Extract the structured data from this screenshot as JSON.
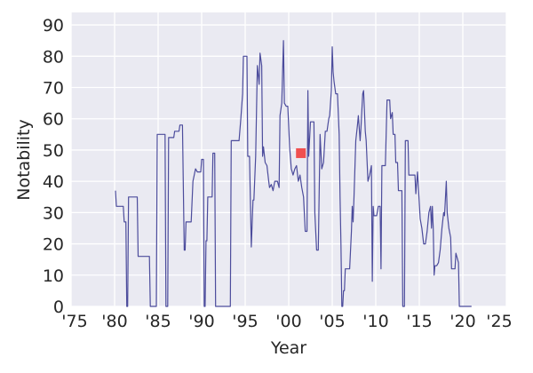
{
  "chart_data": {
    "type": "line",
    "xlabel": "Year",
    "ylabel": "Notability",
    "xlim": [
      1975,
      2025
    ],
    "ylim": [
      0,
      94
    ],
    "grid": true,
    "background": "#eaeaf2",
    "line_color": "#4c4c9c",
    "marker_color": "#f05050",
    "x_ticks": [
      {
        "value": 1975,
        "label": "'75"
      },
      {
        "value": 1980,
        "label": "'80"
      },
      {
        "value": 1985,
        "label": "'85"
      },
      {
        "value": 1990,
        "label": "'90"
      },
      {
        "value": 1995,
        "label": "'95"
      },
      {
        "value": 2000,
        "label": "'00"
      },
      {
        "value": 2005,
        "label": "'05"
      },
      {
        "value": 2010,
        "label": "'10"
      },
      {
        "value": 2015,
        "label": "'15"
      },
      {
        "value": 2020,
        "label": "'20"
      },
      {
        "value": 2025,
        "label": "'25"
      }
    ],
    "y_ticks": [
      {
        "value": 0,
        "label": "0"
      },
      {
        "value": 10,
        "label": "10"
      },
      {
        "value": 20,
        "label": "20"
      },
      {
        "value": 30,
        "label": "30"
      },
      {
        "value": 40,
        "label": "40"
      },
      {
        "value": 50,
        "label": "50"
      },
      {
        "value": 60,
        "label": "60"
      },
      {
        "value": 70,
        "label": "70"
      },
      {
        "value": 80,
        "label": "80"
      },
      {
        "value": 90,
        "label": "90"
      }
    ],
    "marker": {
      "x": 2001.4,
      "y": 49
    },
    "series": [
      {
        "points": [
          [
            1980.1,
            37
          ],
          [
            1980.2,
            32
          ],
          [
            1981.0,
            32
          ],
          [
            1981.1,
            27
          ],
          [
            1981.3,
            27
          ],
          [
            1981.4,
            0
          ],
          [
            1981.5,
            0
          ],
          [
            1981.6,
            35
          ],
          [
            1982.6,
            35
          ],
          [
            1982.7,
            16
          ],
          [
            1984.0,
            16
          ],
          [
            1984.1,
            0
          ],
          [
            1984.8,
            0
          ],
          [
            1984.9,
            55
          ],
          [
            1985.8,
            55
          ],
          [
            1985.9,
            0
          ],
          [
            1986.1,
            0
          ],
          [
            1986.2,
            54
          ],
          [
            1986.8,
            54
          ],
          [
            1986.9,
            56
          ],
          [
            1987.4,
            56
          ],
          [
            1987.5,
            58
          ],
          [
            1987.8,
            58
          ],
          [
            1988.0,
            18
          ],
          [
            1988.1,
            18
          ],
          [
            1988.2,
            27
          ],
          [
            1988.8,
            27
          ],
          [
            1989.0,
            40
          ],
          [
            1989.3,
            44
          ],
          [
            1989.5,
            43
          ],
          [
            1989.9,
            43
          ],
          [
            1990.0,
            47
          ],
          [
            1990.2,
            47
          ],
          [
            1990.3,
            0
          ],
          [
            1990.4,
            0
          ],
          [
            1990.5,
            21
          ],
          [
            1990.6,
            21
          ],
          [
            1990.7,
            35
          ],
          [
            1991.2,
            35
          ],
          [
            1991.3,
            49
          ],
          [
            1991.5,
            49
          ],
          [
            1991.6,
            0
          ],
          [
            1993.3,
            0
          ],
          [
            1993.4,
            53
          ],
          [
            1994.3,
            53
          ],
          [
            1994.5,
            60
          ],
          [
            1994.7,
            68
          ],
          [
            1994.8,
            80
          ],
          [
            1995.2,
            80
          ],
          [
            1995.3,
            48
          ],
          [
            1995.5,
            48
          ],
          [
            1995.7,
            19
          ],
          [
            1995.9,
            34
          ],
          [
            1996.0,
            34
          ],
          [
            1996.2,
            48
          ],
          [
            1996.4,
            77
          ],
          [
            1996.6,
            71
          ],
          [
            1996.7,
            81
          ],
          [
            1996.9,
            77
          ],
          [
            1997.0,
            48
          ],
          [
            1997.1,
            51
          ],
          [
            1997.3,
            46
          ],
          [
            1997.5,
            45
          ],
          [
            1997.7,
            40
          ],
          [
            1997.8,
            38
          ],
          [
            1998.0,
            39
          ],
          [
            1998.2,
            37
          ],
          [
            1998.4,
            40
          ],
          [
            1998.7,
            40
          ],
          [
            1998.9,
            38
          ],
          [
            1999.0,
            61
          ],
          [
            1999.2,
            65
          ],
          [
            1999.4,
            85
          ],
          [
            1999.5,
            65
          ],
          [
            1999.7,
            64
          ],
          [
            1999.9,
            64
          ],
          [
            2000.1,
            51
          ],
          [
            2000.3,
            44
          ],
          [
            2000.5,
            42
          ],
          [
            2000.7,
            44
          ],
          [
            2000.9,
            45
          ],
          [
            2001.1,
            40
          ],
          [
            2001.3,
            42
          ],
          [
            2001.5,
            38
          ],
          [
            2001.7,
            35
          ],
          [
            2001.9,
            24
          ],
          [
            2002.1,
            24
          ],
          [
            2002.2,
            69
          ],
          [
            2002.3,
            48
          ],
          [
            2002.5,
            59
          ],
          [
            2002.9,
            59
          ],
          [
            2003.0,
            30
          ],
          [
            2003.2,
            18
          ],
          [
            2003.4,
            18
          ],
          [
            2003.6,
            55
          ],
          [
            2003.8,
            44
          ],
          [
            2004.0,
            46
          ],
          [
            2004.2,
            56
          ],
          [
            2004.4,
            56
          ],
          [
            2004.6,
            60
          ],
          [
            2004.7,
            61
          ],
          [
            2004.9,
            69
          ],
          [
            2005.0,
            83
          ],
          [
            2005.1,
            75
          ],
          [
            2005.2,
            72
          ],
          [
            2005.4,
            68
          ],
          [
            2005.6,
            68
          ],
          [
            2005.8,
            55
          ],
          [
            2005.9,
            35
          ],
          [
            2006.0,
            20
          ],
          [
            2006.1,
            0
          ],
          [
            2006.2,
            0
          ],
          [
            2006.3,
            5
          ],
          [
            2006.4,
            5
          ],
          [
            2006.5,
            12
          ],
          [
            2007.0,
            12
          ],
          [
            2007.2,
            24
          ],
          [
            2007.3,
            32
          ],
          [
            2007.4,
            27
          ],
          [
            2007.5,
            35
          ],
          [
            2007.7,
            53
          ],
          [
            2007.9,
            58
          ],
          [
            2008.0,
            61
          ],
          [
            2008.2,
            53
          ],
          [
            2008.3,
            57
          ],
          [
            2008.5,
            68
          ],
          [
            2008.6,
            69
          ],
          [
            2008.8,
            56
          ],
          [
            2008.9,
            53
          ],
          [
            2009.1,
            40
          ],
          [
            2009.3,
            42
          ],
          [
            2009.5,
            45
          ],
          [
            2009.6,
            8
          ],
          [
            2009.7,
            32
          ],
          [
            2009.8,
            29
          ],
          [
            2010.1,
            29
          ],
          [
            2010.3,
            32
          ],
          [
            2010.5,
            32
          ],
          [
            2010.6,
            12
          ],
          [
            2010.7,
            45
          ],
          [
            2011.1,
            45
          ],
          [
            2011.3,
            66
          ],
          [
            2011.6,
            66
          ],
          [
            2011.7,
            60
          ],
          [
            2011.9,
            62
          ],
          [
            2012.0,
            55
          ],
          [
            2012.2,
            55
          ],
          [
            2012.3,
            46
          ],
          [
            2012.5,
            46
          ],
          [
            2012.6,
            37
          ],
          [
            2013.0,
            37
          ],
          [
            2013.1,
            0
          ],
          [
            2013.3,
            0
          ],
          [
            2013.4,
            53
          ],
          [
            2013.7,
            53
          ],
          [
            2013.8,
            42
          ],
          [
            2014.5,
            42
          ],
          [
            2014.6,
            36
          ],
          [
            2014.8,
            43
          ],
          [
            2015.0,
            33
          ],
          [
            2015.1,
            28
          ],
          [
            2015.3,
            25
          ],
          [
            2015.5,
            20
          ],
          [
            2015.7,
            20
          ],
          [
            2015.9,
            24
          ],
          [
            2016.1,
            30
          ],
          [
            2016.3,
            32
          ],
          [
            2016.4,
            25
          ],
          [
            2016.5,
            32
          ],
          [
            2016.6,
            25
          ],
          [
            2016.7,
            10
          ],
          [
            2016.8,
            13
          ],
          [
            2017.0,
            13
          ],
          [
            2017.2,
            14
          ],
          [
            2017.4,
            18
          ],
          [
            2017.6,
            25
          ],
          [
            2017.8,
            30
          ],
          [
            2017.9,
            29
          ],
          [
            2018.1,
            40
          ],
          [
            2018.2,
            30
          ],
          [
            2018.4,
            25
          ],
          [
            2018.6,
            22
          ],
          [
            2018.7,
            12
          ],
          [
            2019.1,
            12
          ],
          [
            2019.2,
            17
          ],
          [
            2019.5,
            14
          ],
          [
            2019.6,
            0
          ],
          [
            2021.0,
            0
          ]
        ]
      }
    ]
  }
}
